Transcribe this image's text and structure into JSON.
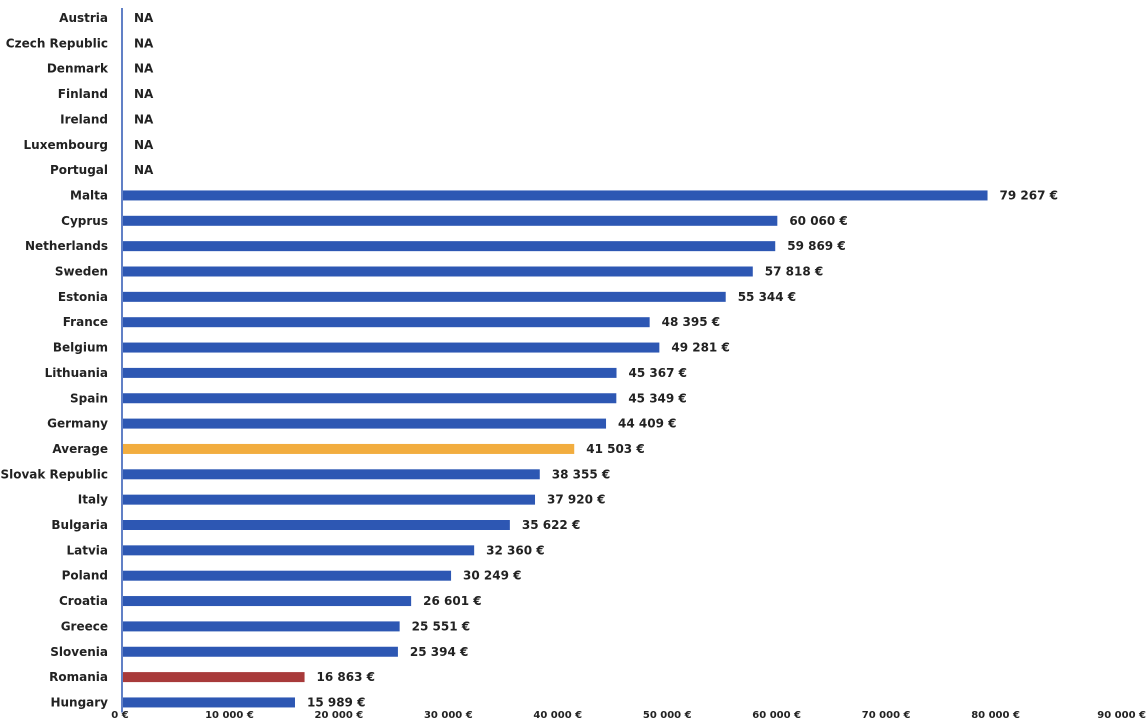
{
  "colors": {
    "bar": "#2d57b3",
    "average": "#f2ad3f",
    "highlight": "#a83a3a",
    "text": "#222222",
    "axis": "#2d57b3"
  },
  "chart_data": {
    "type": "bar",
    "orientation": "horizontal",
    "title": "",
    "xlabel": "",
    "ylabel": "",
    "xlim": [
      0,
      90000
    ],
    "grid": false,
    "unavailable_label": "NA",
    "categories": [
      "Austria",
      "Czech Republic",
      "Denmark",
      "Finland",
      "Ireland",
      "Luxembourg",
      "Portugal",
      "Malta",
      "Cyprus",
      "Netherlands",
      "Sweden",
      "Estonia",
      "France",
      "Belgium",
      "Lithuania",
      "Spain",
      "Germany",
      "Average",
      "Slovak Republic",
      "Italy",
      "Bulgaria",
      "Latvia",
      "Poland",
      "Croatia",
      "Greece",
      "Slovenia",
      "Romania",
      "Hungary"
    ],
    "values": [
      null,
      null,
      null,
      null,
      null,
      null,
      null,
      79267,
      60060,
      59869,
      57818,
      55344,
      48395,
      49281,
      45367,
      45349,
      44409,
      41503,
      38355,
      37920,
      35622,
      32360,
      30249,
      26601,
      25551,
      25394,
      16863,
      15989
    ],
    "value_labels": [
      "NA",
      "NA",
      "NA",
      "NA",
      "NA",
      "NA",
      "NA",
      "79 267 €",
      "60 060 €",
      "59 869 €",
      "57 818 €",
      "55 344 €",
      "48 395 €",
      "49 281 €",
      "45 367 €",
      "45 349 €",
      "44 409 €",
      "41 503 €",
      "38 355 €",
      "37 920 €",
      "35 622 €",
      "32 360 €",
      "30 249 €",
      "26 601 €",
      "25 551 €",
      "25 394 €",
      "16 863 €",
      "15 989 €"
    ],
    "bar_colors": [
      "bar",
      "bar",
      "bar",
      "bar",
      "bar",
      "bar",
      "bar",
      "bar",
      "bar",
      "bar",
      "bar",
      "bar",
      "bar",
      "bar",
      "bar",
      "bar",
      "bar",
      "average",
      "bar",
      "bar",
      "bar",
      "bar",
      "bar",
      "bar",
      "bar",
      "bar",
      "highlight",
      "bar"
    ],
    "xticks": [
      0,
      10000,
      20000,
      30000,
      40000,
      50000,
      60000,
      70000,
      80000,
      90000
    ],
    "xtick_labels": [
      "0 €",
      "10 000 €",
      "20 000 €",
      "30 000 €",
      "40 000 €",
      "50 000 €",
      "60 000 €",
      "70 000 €",
      "80 000 €",
      "90 000 €"
    ]
  }
}
